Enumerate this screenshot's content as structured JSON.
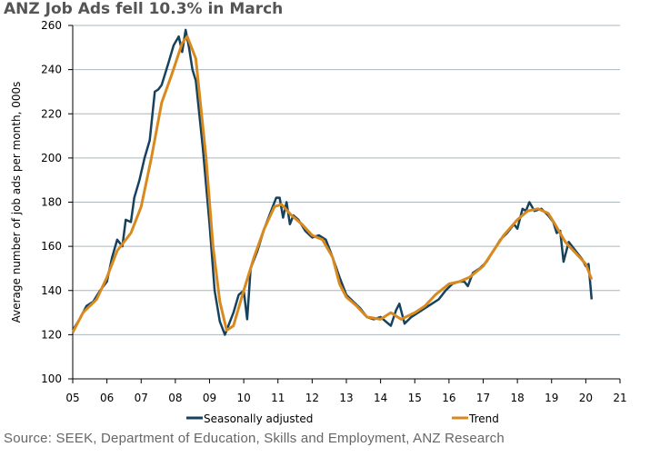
{
  "chart_data": {
    "type": "line",
    "title": "ANZ Job Ads fell 10.3% in March",
    "ylabel": "Average number of job ads per month, 000s",
    "xlabel": "",
    "ylim": [
      100,
      260
    ],
    "xlim": [
      2005,
      2021
    ],
    "yticks": [
      100,
      120,
      140,
      160,
      180,
      200,
      220,
      240,
      260
    ],
    "xtick_labels": [
      "05",
      "06",
      "07",
      "08",
      "09",
      "10",
      "11",
      "12",
      "13",
      "14",
      "15",
      "16",
      "17",
      "18",
      "19",
      "20",
      "21"
    ],
    "legend": [
      "Seasonally adjusted",
      "Trend"
    ],
    "legend_position": "bottom",
    "series": [
      {
        "name": "Seasonally adjusted",
        "color": "#17425e",
        "x": [
          2005.0,
          2005.2,
          2005.4,
          2005.6,
          2005.8,
          2006.0,
          2006.15,
          2006.3,
          2006.45,
          2006.55,
          2006.7,
          2006.8,
          2006.95,
          2007.1,
          2007.25,
          2007.4,
          2007.5,
          2007.6,
          2007.8,
          2007.95,
          2008.1,
          2008.2,
          2008.3,
          2008.4,
          2008.5,
          2008.6,
          2008.8,
          2009.0,
          2009.15,
          2009.3,
          2009.45,
          2009.55,
          2009.7,
          2009.85,
          2010.0,
          2010.1,
          2010.2,
          2010.4,
          2010.6,
          2010.8,
          2010.95,
          2011.05,
          2011.15,
          2011.25,
          2011.35,
          2011.45,
          2011.6,
          2011.8,
          2012.0,
          2012.2,
          2012.4,
          2012.6,
          2012.8,
          2013.0,
          2013.2,
          2013.4,
          2013.6,
          2013.8,
          2014.0,
          2014.15,
          2014.3,
          2014.45,
          2014.55,
          2014.7,
          2014.9,
          2015.1,
          2015.3,
          2015.5,
          2015.7,
          2015.9,
          2016.1,
          2016.3,
          2016.45,
          2016.55,
          2016.7,
          2016.9,
          2017.1,
          2017.3,
          2017.5,
          2017.7,
          2017.9,
          2018.0,
          2018.15,
          2018.25,
          2018.35,
          2018.5,
          2018.7,
          2018.9,
          2019.05,
          2019.15,
          2019.25,
          2019.35,
          2019.5,
          2019.7,
          2019.9,
          2020.0,
          2020.08,
          2020.17
        ],
        "y": [
          122,
          127,
          133,
          135,
          140,
          144,
          155,
          163,
          160,
          172,
          171,
          182,
          190,
          200,
          208,
          230,
          231,
          233,
          243,
          251,
          255,
          248,
          258,
          250,
          240,
          235,
          205,
          170,
          140,
          126,
          120,
          124,
          130,
          138,
          140,
          127,
          150,
          158,
          168,
          176,
          182,
          182,
          173,
          180,
          170,
          174,
          172,
          167,
          164,
          165,
          163,
          155,
          146,
          138,
          135,
          132,
          128,
          127,
          128,
          126,
          124,
          131,
          134,
          125,
          128,
          130,
          132,
          134,
          136,
          140,
          143,
          144,
          144,
          142,
          148,
          150,
          153,
          158,
          163,
          166,
          170,
          168,
          177,
          176,
          180,
          176,
          177,
          174,
          171,
          166,
          167,
          153,
          162,
          158,
          154,
          151,
          152,
          136
        ]
      },
      {
        "name": "Trend",
        "color": "#d98a1e",
        "x": [
          2005.0,
          2005.3,
          2005.7,
          2006.0,
          2006.3,
          2006.7,
          2007.0,
          2007.3,
          2007.6,
          2007.9,
          2008.2,
          2008.35,
          2008.6,
          2008.9,
          2009.1,
          2009.3,
          2009.5,
          2009.7,
          2010.0,
          2010.3,
          2010.6,
          2010.9,
          2011.1,
          2011.4,
          2011.7,
          2012.0,
          2012.3,
          2012.6,
          2012.8,
          2013.0,
          2013.3,
          2013.6,
          2014.0,
          2014.3,
          2014.6,
          2015.0,
          2015.3,
          2015.6,
          2016.0,
          2016.3,
          2016.6,
          2017.0,
          2017.3,
          2017.6,
          2018.0,
          2018.3,
          2018.6,
          2018.9,
          2019.1,
          2019.4,
          2019.7,
          2020.0,
          2020.17
        ],
        "y": [
          121,
          130,
          136,
          146,
          158,
          166,
          178,
          200,
          225,
          238,
          252,
          255,
          245,
          200,
          160,
          135,
          122,
          124,
          140,
          155,
          168,
          178,
          179,
          174,
          170,
          165,
          163,
          155,
          143,
          137,
          133,
          128,
          127,
          130,
          127,
          130,
          133,
          138,
          143,
          144,
          146,
          151,
          158,
          165,
          172,
          176,
          177,
          175,
          170,
          162,
          157,
          152,
          145
        ]
      }
    ]
  },
  "source": "Source: SEEK, Department of Education, Skills and Employment, ANZ Research"
}
